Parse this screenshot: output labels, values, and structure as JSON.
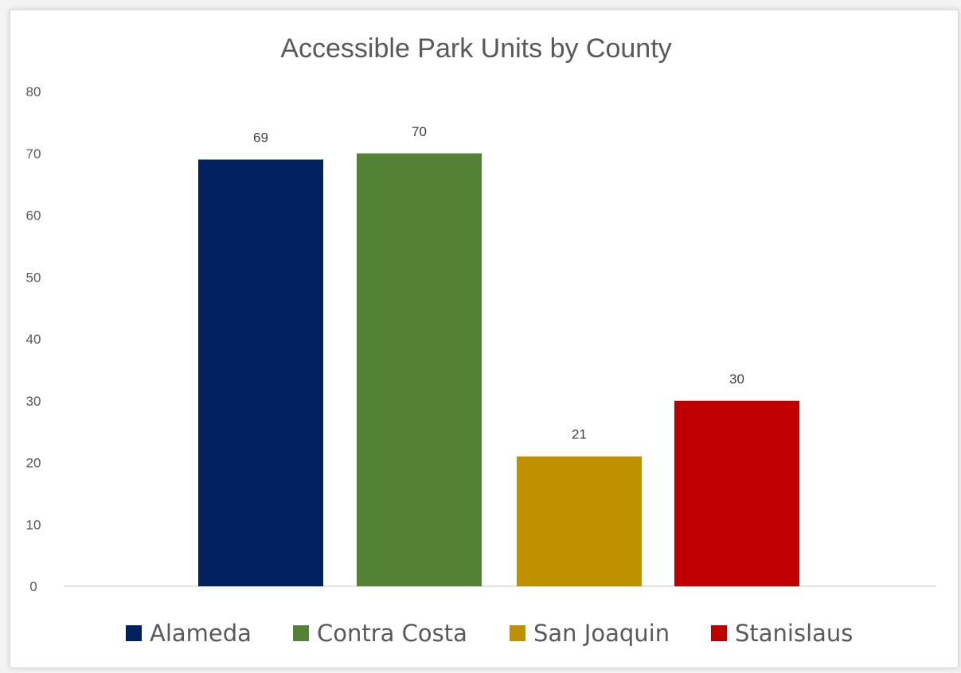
{
  "chart_data": {
    "type": "bar",
    "title": "Accessible Park Units by County",
    "categories": [
      "Alameda",
      "Contra Costa",
      "San Joaquin",
      "Stanislaus"
    ],
    "values": [
      69,
      70,
      21,
      30
    ],
    "colors": [
      "#002060",
      "#548235",
      "#BF9000",
      "#C00000"
    ],
    "ylim": [
      0,
      80
    ],
    "yticks": [
      "0",
      "10",
      "20",
      "30",
      "40",
      "50",
      "60",
      "70",
      "80"
    ],
    "data_labels": [
      "69",
      "70",
      "21",
      "30"
    ],
    "legend_position": "bottom",
    "grid": false
  }
}
